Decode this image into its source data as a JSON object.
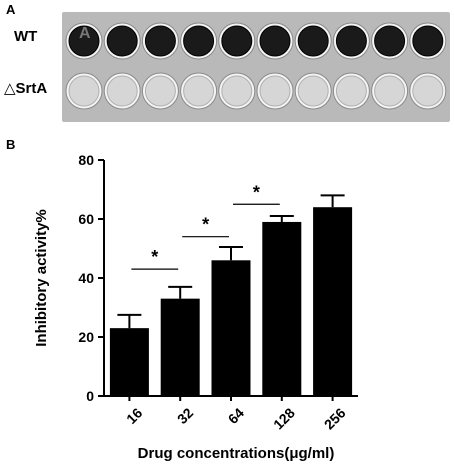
{
  "panel_a": {
    "label": "A",
    "well_label": "A",
    "row_labels": [
      "WT",
      "△SrtA"
    ],
    "wells_per_row": 10
  },
  "panel_b": {
    "label": "B"
  },
  "colors": {
    "bar": "#000000",
    "plate": "#b9b9b9",
    "wt_well": "#1a1a1a",
    "srta_well": "#d6d6d6"
  },
  "chart_data": {
    "type": "bar",
    "categories": [
      "16",
      "32",
      "64",
      "128",
      "256"
    ],
    "values": [
      23,
      33,
      46,
      59,
      64
    ],
    "errors": [
      4.5,
      4,
      4.5,
      2,
      4
    ],
    "xlabel": "Drug concentrations(μg/ml)",
    "ylabel": "Inhibitory activity%",
    "ylim": [
      0,
      80
    ],
    "yticks": [
      0,
      20,
      40,
      60,
      80
    ],
    "grid": false,
    "significance": [
      {
        "between": [
          0,
          1
        ],
        "label": "*",
        "y": 43
      },
      {
        "between": [
          1,
          2
        ],
        "label": "*",
        "y": 54
      },
      {
        "between": [
          2,
          3
        ],
        "label": "*",
        "y": 65
      }
    ]
  }
}
